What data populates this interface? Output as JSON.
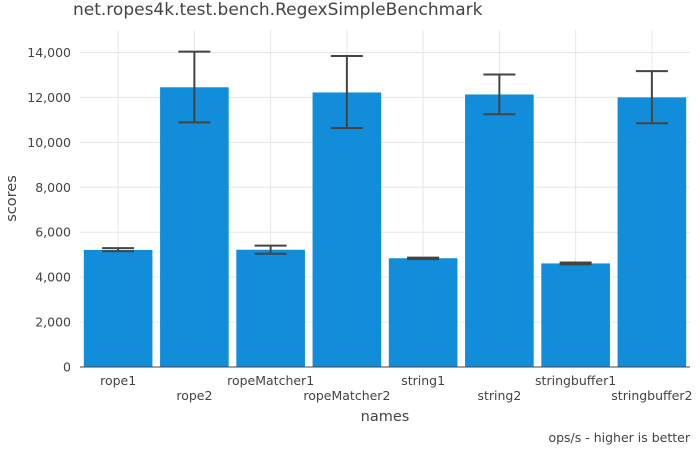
{
  "chart_data": {
    "type": "bar",
    "title": "net.ropes4k.test.bench.RegexSimpleBenchmark",
    "xlabel": "names",
    "ylabel": "scores",
    "footnote": "ops/s - higher is better",
    "categories": [
      "rope1",
      "rope2",
      "ropeMatcher1",
      "ropeMatcher2",
      "string1",
      "string2",
      "stringbuffer1",
      "stringbuffer2"
    ],
    "values": [
      5210,
      12450,
      5220,
      12220,
      4840,
      12130,
      4610,
      12000
    ],
    "error_low": [
      5150,
      10890,
      5040,
      10640,
      4800,
      11250,
      4570,
      10850
    ],
    "error_high": [
      5290,
      14040,
      5400,
      13840,
      4870,
      13020,
      4650,
      13170
    ],
    "ylim": [
      0,
      15000
    ],
    "yticks": [
      0,
      2000,
      4000,
      6000,
      8000,
      10000,
      12000,
      14000
    ],
    "ytick_labels": [
      "0",
      "2,000",
      "4,000",
      "6,000",
      "8,000",
      "10,000",
      "12,000",
      "14,000"
    ],
    "grid": true,
    "colors": {
      "bar": "#118DDA",
      "error_bar": "#444444",
      "grid": "#E6E6E6",
      "axis": "#444444"
    }
  }
}
